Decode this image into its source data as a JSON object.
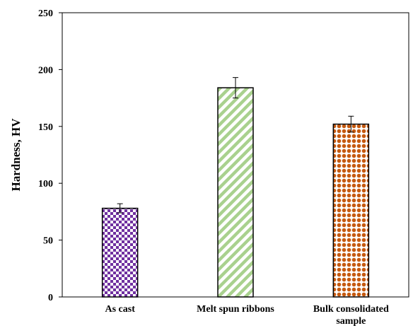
{
  "chart_data": {
    "type": "bar",
    "title": "",
    "xlabel": "",
    "ylabel": "Hardness, HV",
    "ylim": [
      0,
      250
    ],
    "yticks": [
      0,
      50,
      100,
      150,
      200,
      250
    ],
    "grid": false,
    "legend": "none",
    "categories": [
      [
        "As cast"
      ],
      [
        "Melt spun ribbons"
      ],
      [
        "Bulk consolidated",
        "sample"
      ]
    ],
    "values": [
      78,
      184,
      152
    ],
    "errors": [
      4,
      9,
      7
    ],
    "bar_fills": [
      {
        "pattern": "checkerboard",
        "color": "#7030a0"
      },
      {
        "pattern": "diagonal-stripes",
        "color": "#a9d18e"
      },
      {
        "pattern": "dots",
        "color": "#c55a11"
      }
    ],
    "bar_edge_color": "#000000"
  }
}
